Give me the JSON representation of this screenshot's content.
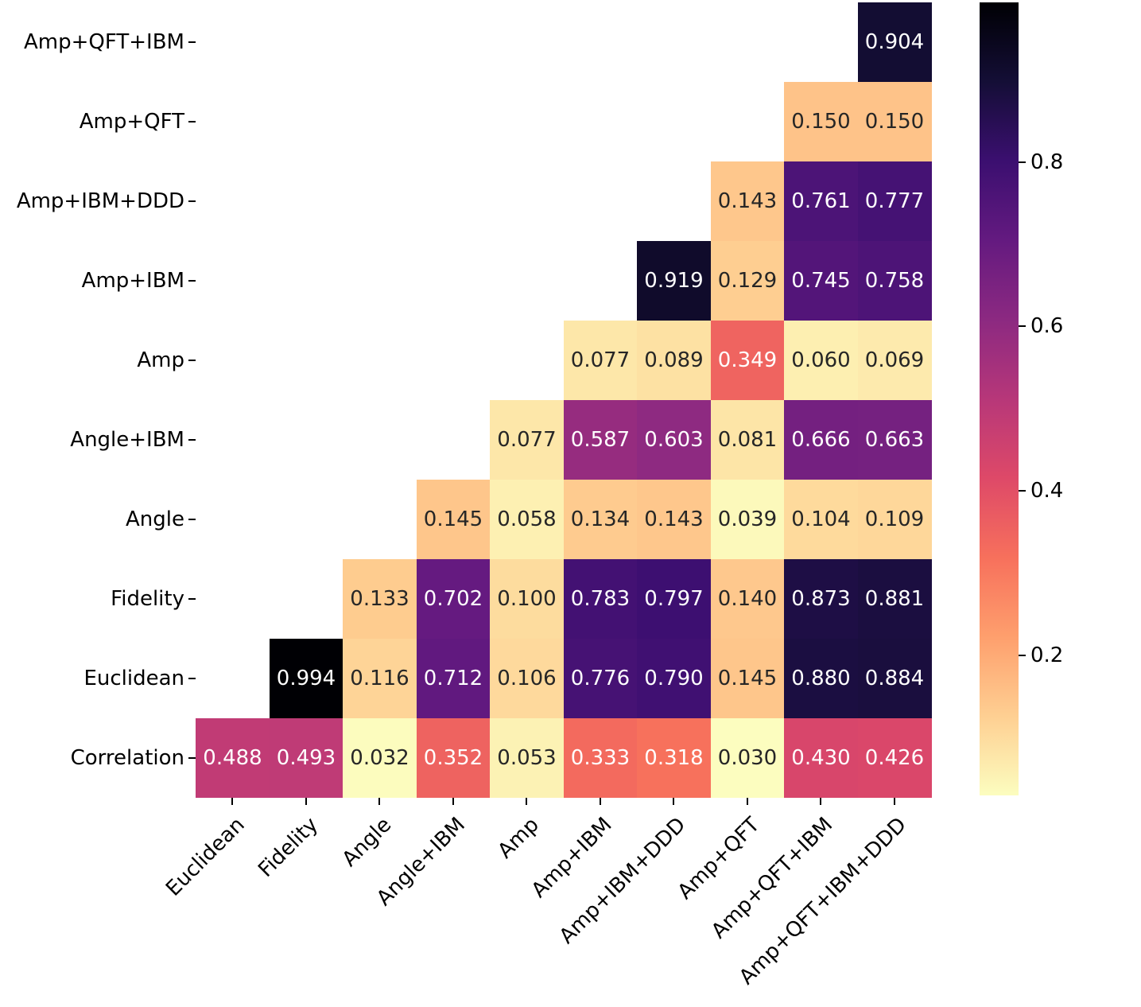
{
  "figure": {
    "background": "#ffffff"
  },
  "chart_data": {
    "type": "heatmap",
    "title": "",
    "xlabel": "",
    "ylabel": "",
    "rows": [
      "Amp+QFT+IBM",
      "Amp+QFT",
      "Amp+IBM+DDD",
      "Amp+IBM",
      "Amp",
      "Angle+IBM",
      "Angle",
      "Fidelity",
      "Euclidean",
      "Correlation"
    ],
    "columns": [
      "Euclidean",
      "Fidelity",
      "Angle",
      "Angle+IBM",
      "Amp",
      "Amp+IBM",
      "Amp+IBM+DDD",
      "Amp+QFT",
      "Amp+QFT+IBM",
      "Amp+QFT+IBM+DDD"
    ],
    "matrix": [
      [
        null,
        null,
        null,
        null,
        null,
        null,
        null,
        null,
        null,
        0.904
      ],
      [
        null,
        null,
        null,
        null,
        null,
        null,
        null,
        null,
        0.15,
        0.15
      ],
      [
        null,
        null,
        null,
        null,
        null,
        null,
        null,
        0.143,
        0.761,
        0.777
      ],
      [
        null,
        null,
        null,
        null,
        null,
        null,
        0.919,
        0.129,
        0.745,
        0.758
      ],
      [
        null,
        null,
        null,
        null,
        null,
        0.077,
        0.089,
        0.349,
        0.06,
        0.069
      ],
      [
        null,
        null,
        null,
        null,
        0.077,
        0.587,
        0.603,
        0.081,
        0.666,
        0.663
      ],
      [
        null,
        null,
        null,
        0.145,
        0.058,
        0.134,
        0.143,
        0.039,
        0.104,
        0.109
      ],
      [
        null,
        null,
        0.133,
        0.702,
        0.1,
        0.783,
        0.797,
        0.14,
        0.873,
        0.881
      ],
      [
        null,
        0.994,
        0.116,
        0.712,
        0.106,
        0.776,
        0.79,
        0.145,
        0.88,
        0.884
      ],
      [
        0.488,
        0.493,
        0.032,
        0.352,
        0.053,
        0.333,
        0.318,
        0.03,
        0.43,
        0.426
      ]
    ],
    "value_decimals": 3,
    "vmin": 0.03,
    "vmax": 0.994,
    "colormap": "magma_r",
    "grid": false,
    "legend": null,
    "colorbar": {
      "position": "right",
      "ticks": [
        0.8,
        0.6,
        0.4,
        0.2
      ]
    }
  },
  "colors": {
    "annot_dark_text": "#262626",
    "annot_light_text": "#ffffff",
    "axis_text": "#000000",
    "magma_stops": [
      "#000004",
      "#140e36",
      "#3b0f70",
      "#641a80",
      "#8c2981",
      "#b73779",
      "#de4968",
      "#f7705c",
      "#fe9f6d",
      "#fecf92",
      "#fcfdbf"
    ]
  }
}
